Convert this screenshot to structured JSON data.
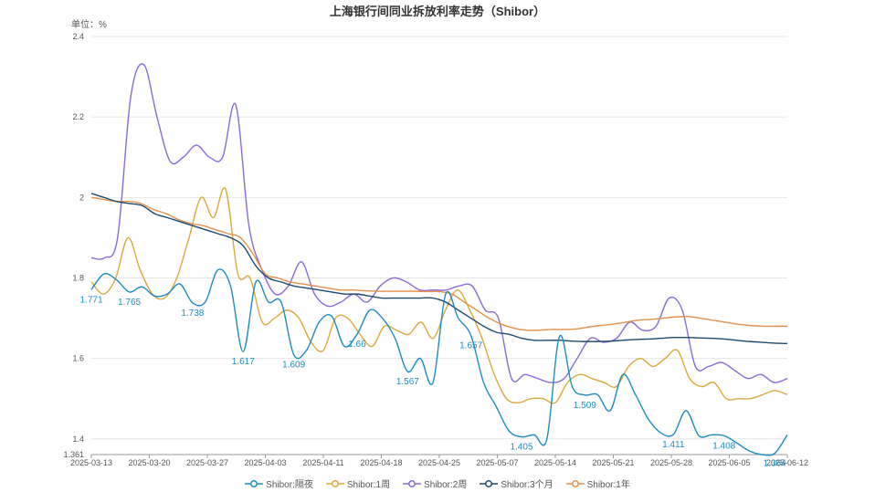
{
  "chart_data": {
    "type": "line",
    "title": "上海银行间同业拆放利率走势（Shibor）",
    "unit_label": "单位：%",
    "x_ticks": [
      "2025-03-13",
      "2025-03-20",
      "2025-03-27",
      "2025-04-03",
      "2025-04-11",
      "2025-04-18",
      "2025-04-25",
      "2025-05-07",
      "2025-05-14",
      "2025-05-21",
      "2025-05-28",
      "2025-06-05",
      "2025-06-12"
    ],
    "y_ticks": [
      1.361,
      1.4,
      1.6,
      1.8,
      2,
      2.2,
      2.4
    ],
    "ylim": [
      1.361,
      2.4
    ],
    "grid": true,
    "legend_position": "bottom",
    "series": [
      {
        "name": "Shibor:隔夜",
        "color": "#1d8cbf",
        "values": [
          1.771,
          1.81,
          1.795,
          1.765,
          1.778,
          1.755,
          1.76,
          1.785,
          1.738,
          1.74,
          1.82,
          1.78,
          1.617,
          1.79,
          1.74,
          1.74,
          1.609,
          1.62,
          1.69,
          1.705,
          1.63,
          1.66,
          1.72,
          1.7,
          1.65,
          1.567,
          1.6,
          1.54,
          1.76,
          1.7,
          1.657,
          1.54,
          1.48,
          1.42,
          1.405,
          1.41,
          1.4,
          1.655,
          1.53,
          1.509,
          1.51,
          1.47,
          1.56,
          1.51,
          1.45,
          1.415,
          1.411,
          1.47,
          1.408,
          1.41,
          1.408,
          1.39,
          1.37,
          1.361,
          1.364,
          1.41
        ],
        "labels": [
          {
            "index": 0,
            "text": "1.771"
          },
          {
            "index": 3,
            "text": "1.765"
          },
          {
            "index": 8,
            "text": "1.738"
          },
          {
            "index": 12,
            "text": "1.617"
          },
          {
            "index": 16,
            "text": "1.609"
          },
          {
            "index": 21,
            "text": "1.66"
          },
          {
            "index": 25,
            "text": "1.567"
          },
          {
            "index": 30,
            "text": "1.657"
          },
          {
            "index": 34,
            "text": "1.405"
          },
          {
            "index": 39,
            "text": "1.509"
          },
          {
            "index": 46,
            "text": "1.411"
          },
          {
            "index": 50,
            "text": "1.408"
          },
          {
            "index": 54,
            "text": "1.364"
          }
        ]
      },
      {
        "name": "Shibor:1周",
        "color": "#d9a93d",
        "values": [
          1.79,
          1.76,
          1.8,
          1.9,
          1.82,
          1.76,
          1.75,
          1.8,
          1.9,
          2.0,
          1.95,
          2.02,
          1.81,
          1.8,
          1.69,
          1.7,
          1.72,
          1.7,
          1.64,
          1.62,
          1.7,
          1.7,
          1.66,
          1.63,
          1.68,
          1.67,
          1.66,
          1.69,
          1.65,
          1.72,
          1.77,
          1.72,
          1.65,
          1.56,
          1.5,
          1.49,
          1.5,
          1.5,
          1.49,
          1.54,
          1.56,
          1.55,
          1.54,
          1.53,
          1.58,
          1.6,
          1.58,
          1.6,
          1.62,
          1.55,
          1.53,
          1.54,
          1.5,
          1.5,
          1.5,
          1.51,
          1.52,
          1.51
        ]
      },
      {
        "name": "Shibor:2周",
        "color": "#8c6ad6",
        "values": [
          1.85,
          1.85,
          1.9,
          2.25,
          2.33,
          2.2,
          2.09,
          2.1,
          2.13,
          2.1,
          2.1,
          2.23,
          1.93,
          1.82,
          1.76,
          1.78,
          1.84,
          1.76,
          1.73,
          1.74,
          1.76,
          1.74,
          1.78,
          1.8,
          1.79,
          1.77,
          1.77,
          1.77,
          1.78,
          1.78,
          1.72,
          1.7,
          1.55,
          1.56,
          1.55,
          1.54,
          1.55,
          1.6,
          1.65,
          1.64,
          1.65,
          1.69,
          1.67,
          1.68,
          1.75,
          1.72,
          1.58,
          1.58,
          1.59,
          1.57,
          1.55,
          1.56,
          1.54,
          1.55
        ]
      },
      {
        "name": "Shibor:3个月",
        "color": "#1c4a6e",
        "values": [
          2.01,
          2.0,
          1.99,
          1.985,
          1.98,
          1.96,
          1.95,
          1.94,
          1.93,
          1.92,
          1.91,
          1.9,
          1.88,
          1.83,
          1.8,
          1.79,
          1.78,
          1.775,
          1.77,
          1.765,
          1.76,
          1.76,
          1.755,
          1.75,
          1.75,
          1.75,
          1.75,
          1.75,
          1.74,
          1.72,
          1.7,
          1.68,
          1.665,
          1.66,
          1.65,
          1.645,
          1.645,
          1.645,
          1.643,
          1.642,
          1.642,
          1.643,
          1.645,
          1.647,
          1.648,
          1.65,
          1.652,
          1.652,
          1.651,
          1.65,
          1.648,
          1.645,
          1.642,
          1.64,
          1.638,
          1.637
        ]
      },
      {
        "name": "Shibor:1年",
        "color": "#e4904a",
        "values": [
          2.0,
          1.995,
          1.99,
          1.99,
          1.985,
          1.97,
          1.96,
          1.945,
          1.935,
          1.93,
          1.92,
          1.91,
          1.9,
          1.86,
          1.81,
          1.8,
          1.79,
          1.785,
          1.78,
          1.775,
          1.77,
          1.77,
          1.768,
          1.767,
          1.767,
          1.767,
          1.767,
          1.766,
          1.766,
          1.76,
          1.74,
          1.72,
          1.7,
          1.685,
          1.675,
          1.67,
          1.67,
          1.672,
          1.672,
          1.673,
          1.678,
          1.682,
          1.685,
          1.69,
          1.695,
          1.697,
          1.7,
          1.703,
          1.704,
          1.7,
          1.695,
          1.69,
          1.685,
          1.682,
          1.68,
          1.68,
          1.68
        ]
      }
    ]
  }
}
